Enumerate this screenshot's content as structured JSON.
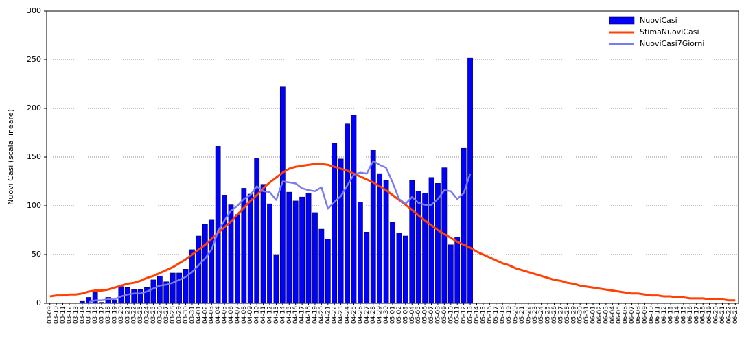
{
  "chart_data": {
    "type": "bar",
    "ylabel": "Nuovi Casi (scala lineare)",
    "ylim": [
      0,
      300
    ],
    "yticks": [
      0,
      50,
      100,
      150,
      200,
      250,
      300
    ],
    "grid": true,
    "legend": "top-right",
    "categories": [
      "03-09",
      "03-10",
      "03-11",
      "03-12",
      "03-13",
      "03-14",
      "03-15",
      "03-16",
      "03-17",
      "03-18",
      "03-19",
      "03-20",
      "03-21",
      "03-22",
      "03-23",
      "03-24",
      "03-25",
      "03-26",
      "03-27",
      "03-28",
      "03-29",
      "03-30",
      "03-31",
      "04-01",
      "04-02",
      "04-03",
      "04-04",
      "04-05",
      "04-06",
      "04-07",
      "04-08",
      "04-09",
      "04-10",
      "04-11",
      "04-12",
      "04-13",
      "04-14",
      "04-15",
      "04-16",
      "04-17",
      "04-18",
      "04-19",
      "04-20",
      "04-21",
      "04-22",
      "04-23",
      "04-24",
      "04-25",
      "04-26",
      "04-27",
      "04-28",
      "04-29",
      "04-30",
      "05-01",
      "05-02",
      "05-03",
      "05-04",
      "05-05",
      "05-06",
      "05-07",
      "05-08",
      "05-09",
      "05-10",
      "05-11",
      "05-12",
      "05-13",
      "05-14",
      "05-15",
      "05-16",
      "05-17",
      "05-18",
      "05-19",
      "05-20",
      "05-21",
      "05-22",
      "05-23",
      "05-24",
      "05-25",
      "05-26",
      "05-27",
      "05-28",
      "05-29",
      "05-30",
      "05-31",
      "06-01",
      "06-02",
      "06-03",
      "06-04",
      "06-05",
      "06-06",
      "06-07",
      "06-08",
      "06-09",
      "06-10",
      "06-11",
      "06-12",
      "06-13",
      "06-14",
      "06-15",
      "06-16",
      "06-17",
      "06-18",
      "06-19",
      "06-20",
      "06-21",
      "06-22",
      "06-23"
    ],
    "series": [
      {
        "name": "NuoviCasi",
        "type": "bar",
        "color": "#0000ff",
        "values": [
          0,
          0,
          0,
          0,
          0,
          2,
          6,
          11,
          1,
          6,
          3,
          17,
          16,
          14,
          14,
          16,
          24,
          28,
          22,
          31,
          31,
          35,
          55,
          69,
          81,
          86,
          161,
          111,
          101,
          91,
          118,
          112,
          149,
          122,
          102,
          50,
          222,
          114,
          105,
          109,
          113,
          93,
          76,
          66,
          164,
          148,
          184,
          193,
          104,
          73,
          157,
          133,
          126,
          83,
          72,
          69,
          126,
          115,
          113,
          129,
          123,
          139,
          60,
          68,
          159,
          252,
          null,
          null,
          null,
          null,
          null,
          null,
          null,
          null,
          null,
          null,
          null,
          null,
          null,
          null,
          null,
          null,
          null,
          null,
          null,
          null,
          null,
          null,
          null,
          null,
          null,
          null,
          null,
          null,
          null,
          null,
          null,
          null,
          null,
          null,
          null,
          null,
          null,
          null,
          null,
          null,
          null
        ]
      },
      {
        "name": "StimaNuoviCasi",
        "type": "line",
        "color": "#ff4000",
        "values": [
          7,
          8,
          8,
          9,
          9,
          10,
          12,
          13,
          13,
          14,
          16,
          18,
          20,
          21,
          23,
          26,
          28,
          31,
          34,
          37,
          41,
          45,
          50,
          55,
          60,
          66,
          72,
          78,
          84,
          91,
          98,
          105,
          111,
          118,
          124,
          129,
          134,
          138,
          140,
          141,
          142,
          143,
          143,
          142,
          140,
          138,
          136,
          133,
          130,
          127,
          124,
          120,
          116,
          111,
          106,
          101,
          96,
          90,
          85,
          80,
          75,
          71,
          67,
          63,
          60,
          57,
          53,
          50,
          47,
          44,
          41,
          39,
          36,
          34,
          32,
          30,
          28,
          26,
          24,
          23,
          21,
          20,
          18,
          17,
          16,
          15,
          14,
          13,
          12,
          11,
          10,
          10,
          9,
          8,
          8,
          7,
          7,
          6,
          6,
          5,
          5,
          5,
          4,
          4,
          4,
          3,
          3
        ]
      },
      {
        "name": "NuoviCasi7Giorni",
        "type": "line",
        "color": "#7b7bf0",
        "values": [
          null,
          null,
          null,
          null,
          null,
          null,
          1,
          3,
          3,
          4,
          4,
          7,
          9,
          10,
          10,
          12,
          15,
          18,
          19,
          21,
          24,
          27,
          32,
          39,
          46,
          55,
          74,
          85,
          95,
          100,
          107,
          111,
          120,
          115,
          114,
          106,
          125,
          124,
          123,
          118,
          116,
          115,
          119,
          97,
          104,
          110,
          121,
          132,
          134,
          133,
          146,
          142,
          139,
          124,
          107,
          102,
          109,
          103,
          101,
          101,
          107,
          116,
          115,
          107,
          113,
          133,
          null,
          null,
          null,
          null,
          null,
          null,
          null,
          null,
          null,
          null,
          null,
          null,
          null,
          null,
          null,
          null,
          null,
          null,
          null,
          null,
          null,
          null,
          null,
          null,
          null,
          null,
          null,
          null,
          null,
          null,
          null,
          null,
          null,
          null,
          null,
          null,
          null,
          null,
          null,
          null,
          null
        ]
      }
    ]
  }
}
